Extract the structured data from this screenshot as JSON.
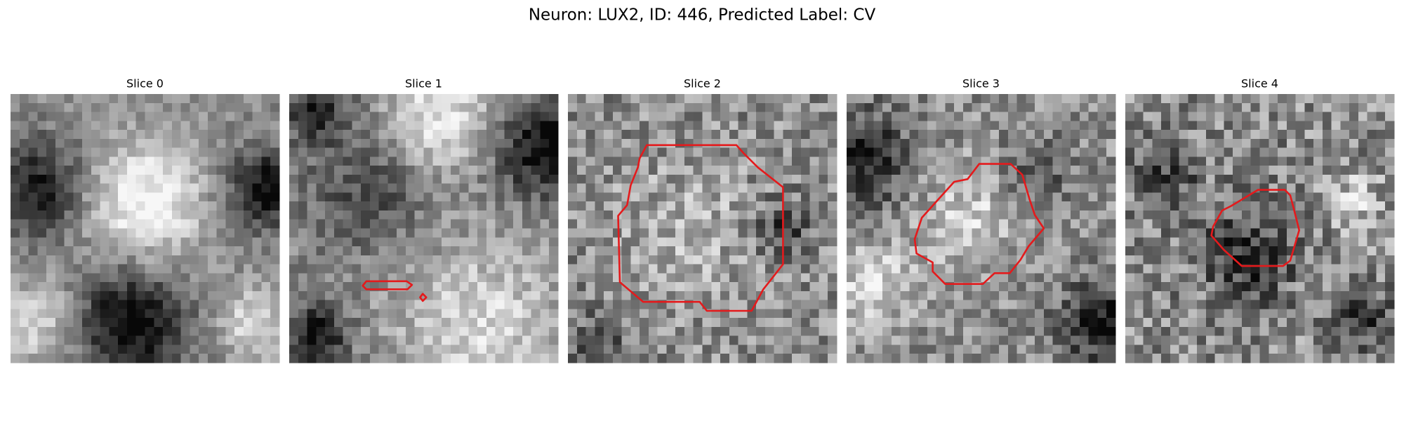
{
  "title": "Neuron: LUX2, ID: 446, Predicted Label: CV",
  "panels": [
    {
      "title": "Slice 0"
    },
    {
      "title": "Slice 1"
    },
    {
      "title": "Slice 2"
    },
    {
      "title": "Slice 3"
    },
    {
      "title": "Slice 4"
    }
  ]
}
